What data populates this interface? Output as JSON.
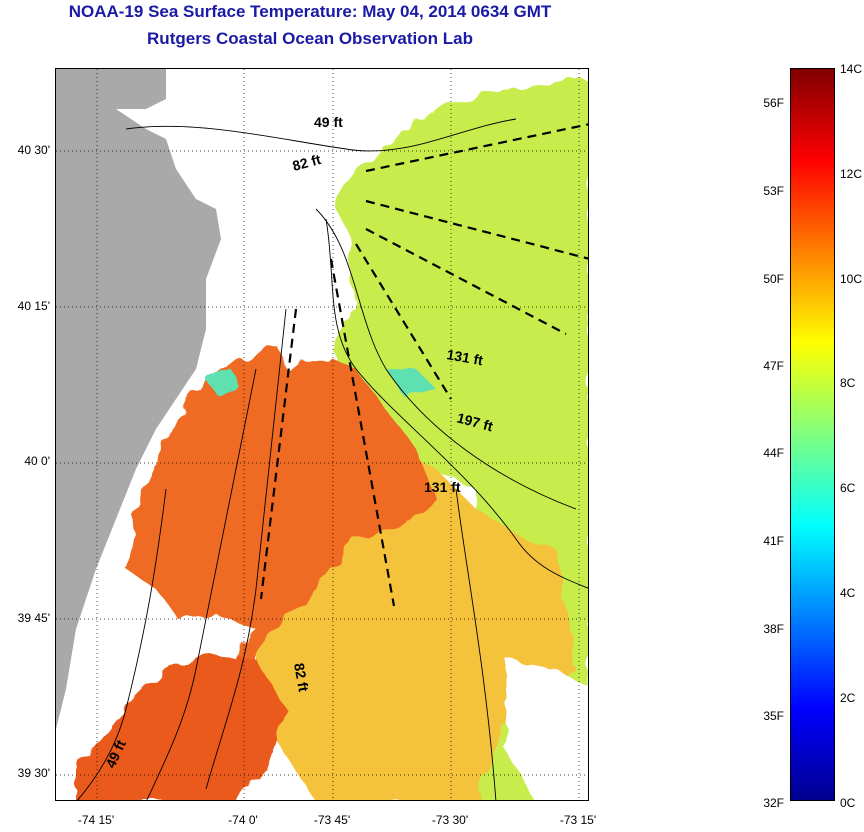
{
  "title_line1": "NOAA-19 Sea Surface Temperature:  May 04, 2014 0634 GMT",
  "title_line2": "Rutgers Coastal Ocean Observation Lab",
  "lat_labels": [
    "40 30'",
    "40 15'",
    "40 0'",
    "39 45'",
    "39 30'"
  ],
  "lon_labels": [
    "-74 15'",
    "-74 0'",
    "-73 45'",
    "-73 30'",
    "-73 15'"
  ],
  "depth_labels": [
    "49 ft",
    "82 ft",
    "131 ft",
    "197 ft",
    "131 ft",
    "82 ft",
    "49 ft"
  ],
  "colorbar": {
    "fahrenheit_labels": [
      "56F",
      "53F",
      "50F",
      "47F",
      "44F",
      "41F",
      "38F",
      "35F",
      "32F"
    ],
    "celsius_labels": [
      "14C",
      "12C",
      "10C",
      "8C",
      "6C",
      "4C",
      "2C",
      "0C"
    ],
    "colormap": "jet",
    "range_celsius": [
      0,
      14
    ]
  },
  "colors": {
    "title": "#1a1aa6",
    "land": "#a9a9a9",
    "warm_water": "#ef6a22",
    "mid_water": "#f5c23a",
    "cool_water": "#c8ec4c"
  }
}
